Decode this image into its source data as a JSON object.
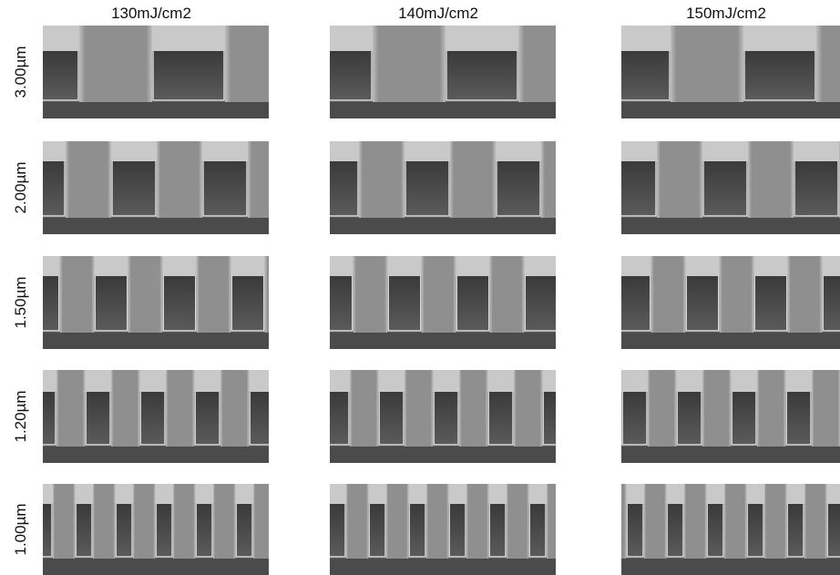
{
  "columns": [
    "130mJ/cm2",
    "140mJ/cm2",
    "150mJ/cm2"
  ],
  "rows": [
    "3.00µm",
    "2.00µm",
    "1.50µm",
    "1.20µm",
    "1.00µm"
  ]
}
